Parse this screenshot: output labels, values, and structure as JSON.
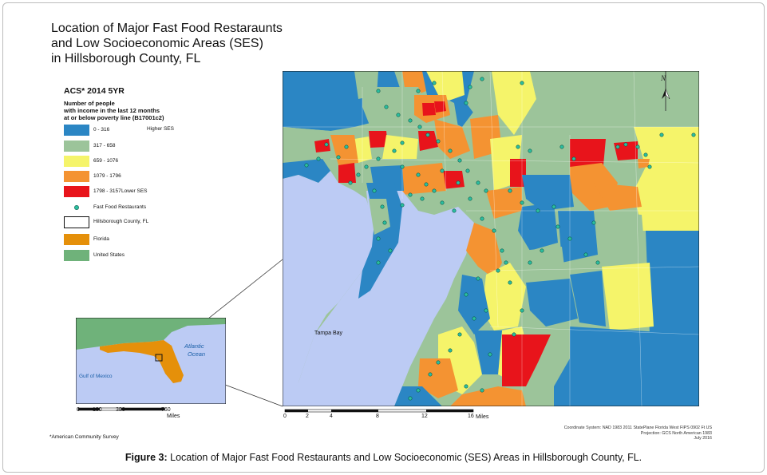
{
  "title": {
    "line1": "Location of Major Fast Food Restaraunts",
    "line2": "and Low Socioeconomic Areas (SES)",
    "line3": "in Hillsborough County, FL"
  },
  "legend": {
    "heading": "ACS* 2014 5YR",
    "subheading_lines": [
      "Number of people",
      "with income in the last 12 months",
      "at or below poverty line (B17001c2)"
    ],
    "classes": [
      {
        "label": "0 - 316",
        "color": "#2b86c4",
        "note": "Higher SES"
      },
      {
        "label": "317 - 658",
        "color": "#9cc49a",
        "note": ""
      },
      {
        "label": "659 - 1076",
        "color": "#f5f46a",
        "note": ""
      },
      {
        "label": "1079 - 1796",
        "color": "#f49332",
        "note": ""
      },
      {
        "label": "1798 - 3157",
        "color": "#e8141b",
        "note": "Lower SES"
      }
    ],
    "restaurants": {
      "label": "Fast Food Restaurants",
      "color": "#2bbfa0"
    },
    "county": {
      "label": "Hillsborough County, FL"
    },
    "florida": {
      "label": "Florida",
      "color": "#e5900a"
    },
    "us": {
      "label": "United States",
      "color": "#6fb27a"
    }
  },
  "map": {
    "water_label": "Tampa Bay",
    "water_color": "#bccbf4",
    "scale_ticks": [
      "0",
      "2",
      "4",
      "8",
      "12",
      "16"
    ],
    "scale_unit": "Miles",
    "north_arrow": "north-arrow"
  },
  "inset": {
    "atlantic_line1": "Atlantic",
    "atlantic_line2": "Ocean",
    "gulf": "Gulf of Mexico",
    "scale_ticks": [
      "0",
      "190",
      "380",
      "760"
    ],
    "scale_unit": "Miles"
  },
  "coord_system": {
    "line1": "Coordinate System: NAD 1983 2011 StatePlane Florida West FIPS 0902 Ft US",
    "line2": "Projection: GCS North American 1983",
    "line3": "July 2016"
  },
  "footnote": "*American Community Survey",
  "caption": {
    "label": "Figure 3:",
    "text": " Location of Major Fast Food Restaurants and Low Socioeconomic (SES) Areas in Hillsborough County, FL."
  }
}
